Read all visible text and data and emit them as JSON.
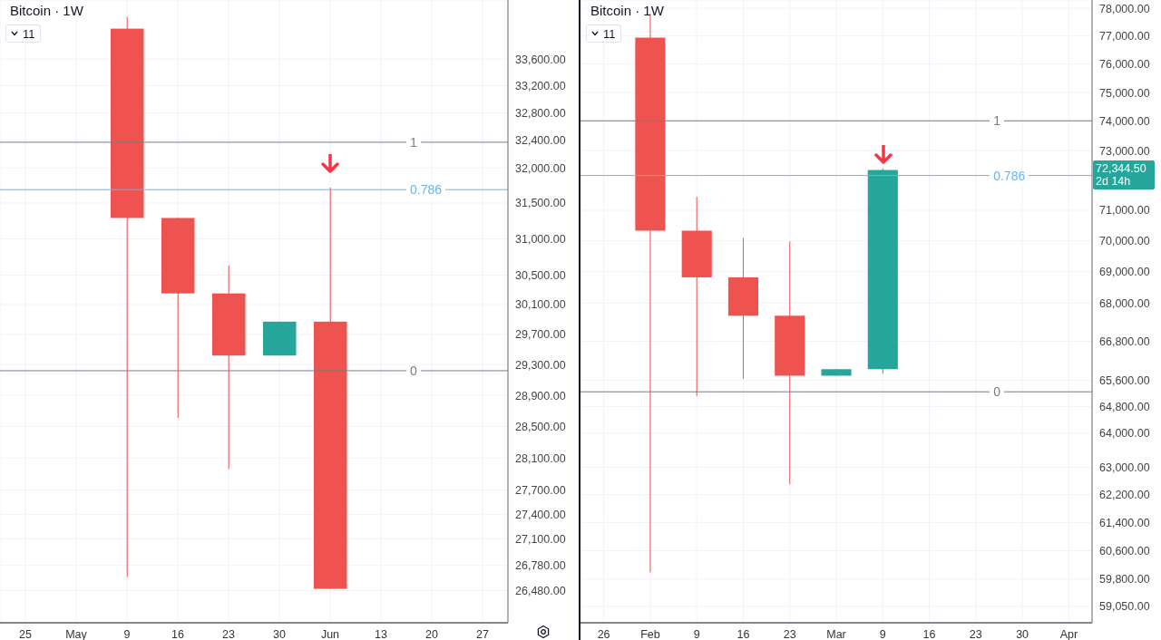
{
  "chart_data": [
    {
      "type": "candlestick",
      "title": "Bitcoin · 1W",
      "categories": [
        "25",
        "May",
        "9",
        "16",
        "23",
        "30",
        "Jun",
        "13",
        "20",
        "27"
      ],
      "ohlc": [
        null,
        null,
        [
          34060,
          34240,
          26640,
          31290
        ],
        [
          31290,
          31290,
          28610,
          30250
        ],
        [
          30250,
          30630,
          27960,
          29420
        ],
        [
          29420,
          29870,
          29420,
          29870
        ],
        [
          29870,
          31720,
          26500,
          26500
        ],
        null,
        null,
        null
      ],
      "colors": [
        null,
        null,
        "#ef5350",
        "#ef5350",
        "#ef5350",
        "#26a69a",
        "#ef5350",
        null,
        null,
        null
      ],
      "log": true,
      "ylim": [
        26100,
        34500
      ],
      "yticks": [
        {
          "value": 33600,
          "label": "33,600.00"
        },
        {
          "value": 33200,
          "label": "33,200.00"
        },
        {
          "value": 32800,
          "label": "32,800.00"
        },
        {
          "value": 32400,
          "label": "32,400.00"
        },
        {
          "value": 32000,
          "label": "32,000.00"
        },
        {
          "value": 31500,
          "label": "31,500.00"
        },
        {
          "value": 31000,
          "label": "31,000.00"
        },
        {
          "value": 30500,
          "label": "30,500.00"
        },
        {
          "value": 30100,
          "label": "30,100.00"
        },
        {
          "value": 29700,
          "label": "29,700.00"
        },
        {
          "value": 29300,
          "label": "29,300.00"
        },
        {
          "value": 28900,
          "label": "28,900.00"
        },
        {
          "value": 28500,
          "label": "28,500.00"
        },
        {
          "value": 28100,
          "label": "28,100.00"
        },
        {
          "value": 27700,
          "label": "27,700.00"
        },
        {
          "value": 27400,
          "label": "27,400.00"
        },
        {
          "value": 27100,
          "label": "27,100.00"
        },
        {
          "value": 26780,
          "label": "26,780.00"
        },
        {
          "value": 26480,
          "label": "26,480.00"
        }
      ],
      "ref_lines": [
        {
          "axis": "y",
          "value": 32370,
          "color": "#787b86"
        },
        {
          "axis": "y",
          "value": 31690,
          "color": "#64b5f6"
        },
        {
          "axis": "y",
          "value": 29220,
          "color": "#787b86"
        }
      ],
      "grid": true,
      "legend": false,
      "annotations": [
        {
          "text": "1",
          "y": 32370
        },
        {
          "text": "0.786",
          "y": 31690
        },
        {
          "text": "0",
          "y": 29220
        },
        "11"
      ]
    },
    {
      "type": "candlestick",
      "title": "Bitcoin · 1W",
      "categories": [
        "26",
        "Feb",
        "9",
        "16",
        "23",
        "Mar",
        "9",
        "16",
        "23",
        "30",
        "Apr"
      ],
      "ohlc": [
        null,
        [
          76940,
          77800,
          59990,
          70330
        ],
        [
          70330,
          71450,
          65120,
          68820
        ],
        [
          68820,
          70090,
          65640,
          67600
        ],
        [
          67600,
          69980,
          62500,
          65740
        ],
        [
          65740,
          65940,
          65740,
          65940
        ],
        [
          65940,
          72400,
          65800,
          72344.5
        ],
        null,
        null,
        null,
        null
      ],
      "colors": [
        null,
        "#ef5350",
        "#ef5350",
        "#ef5350",
        "#ef5350",
        "#26a69a",
        "#26a69a",
        null,
        null,
        null,
        null
      ],
      "log": true,
      "ylim": [
        58600,
        78300
      ],
      "yticks": [
        {
          "value": 78000,
          "label": "78,000.00"
        },
        {
          "value": 77000,
          "label": "77,000.00"
        },
        {
          "value": 76000,
          "label": "76,000.00"
        },
        {
          "value": 75000,
          "label": "75,000.00"
        },
        {
          "value": 74000,
          "label": "74,000.00"
        },
        {
          "value": 73000,
          "label": "73,000.00"
        },
        {
          "value": 71000,
          "label": "71,000.00"
        },
        {
          "value": 70000,
          "label": "70,000.00"
        },
        {
          "value": 69000,
          "label": "69,000.00"
        },
        {
          "value": 68000,
          "label": "68,000.00"
        },
        {
          "value": 66800,
          "label": "66,800.00"
        },
        {
          "value": 65600,
          "label": "65,600.00"
        },
        {
          "value": 64800,
          "label": "64,800.00"
        },
        {
          "value": 64000,
          "label": "64,000.00"
        },
        {
          "value": 63000,
          "label": "63,000.00"
        },
        {
          "value": 62200,
          "label": "62,200.00"
        },
        {
          "value": 61400,
          "label": "61,400.00"
        },
        {
          "value": 60600,
          "label": "60,600.00"
        },
        {
          "value": 59800,
          "label": "59,800.00"
        },
        {
          "value": 59050,
          "label": "59,050.00"
        }
      ],
      "ref_lines": [
        {
          "axis": "y",
          "value": 74020,
          "color": "#787b86"
        },
        {
          "axis": "y",
          "value": 72160,
          "color": "#64b5f6"
        },
        {
          "axis": "y",
          "value": 65250,
          "color": "#787b86"
        }
      ],
      "grid": true,
      "legend": false,
      "annotations": [
        {
          "text": "1",
          "y": 74020
        },
        {
          "text": "0.786",
          "y": 72160
        },
        {
          "text": "0",
          "y": 65250
        },
        "72,344.50 2d 14h",
        "11"
      ]
    }
  ]
}
